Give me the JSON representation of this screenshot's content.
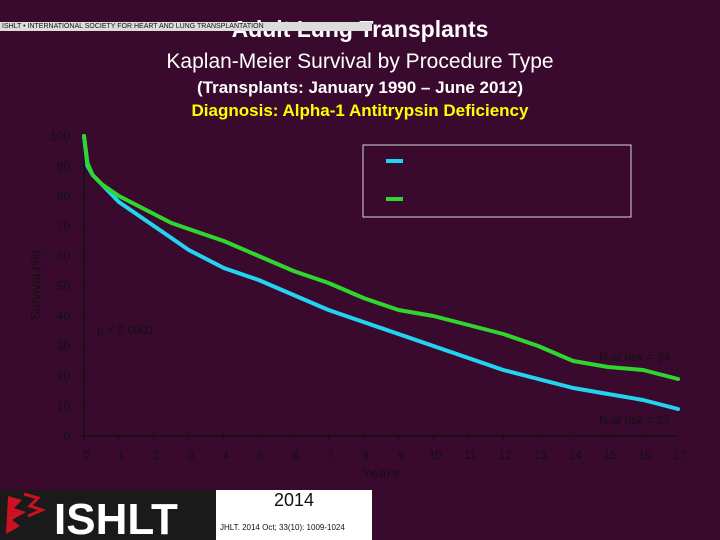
{
  "header": {
    "title": "Adult Lung Transplants",
    "subtitle": "Kaplan-Meier Survival by Procedure Type",
    "period": "(Transplants: January 1990 – June 2012)",
    "diagnosis": "Diagnosis: Alpha-1 Antitrypsin Deficiency"
  },
  "chart_data": {
    "type": "line",
    "title": "Adult Lung Transplants",
    "xlabel": "Years",
    "ylabel": "Survival (%)",
    "xlim": [
      0,
      17
    ],
    "ylim": [
      0,
      100
    ],
    "x_ticks": [
      "0",
      "1",
      "2",
      "3",
      "4",
      "5",
      "6",
      "7",
      "8",
      "9",
      "10",
      "11",
      "12",
      "13",
      "14",
      "15",
      "16",
      "17"
    ],
    "y_ticks": [
      "0",
      "10",
      "20",
      "30",
      "40",
      "50",
      "60",
      "70",
      "80",
      "90",
      "100"
    ],
    "legend_position": "top-right",
    "series": [
      {
        "color": "#22d4f0",
        "x": [
          0,
          0.1,
          0.25,
          0.5,
          1,
          1.5,
          2,
          2.5,
          3,
          3.5,
          4,
          5,
          6,
          7,
          8,
          9,
          10,
          11,
          12,
          13,
          14,
          15,
          16,
          17
        ],
        "y": [
          100,
          90,
          87,
          84,
          78,
          74,
          70,
          66,
          62,
          59,
          56,
          52,
          47,
          42,
          38,
          34,
          30,
          26,
          22,
          19,
          16,
          14,
          12,
          9
        ]
      },
      {
        "color": "#2ed62e",
        "x": [
          0,
          0.1,
          0.25,
          0.5,
          1,
          1.5,
          2,
          2.5,
          3,
          3.5,
          4,
          5,
          6,
          7,
          8,
          9,
          10,
          11,
          12,
          13,
          14,
          15,
          16,
          17
        ],
        "y": [
          100,
          91,
          87,
          84,
          80,
          77,
          74,
          71,
          69,
          67,
          65,
          60,
          55,
          51,
          46,
          42,
          40,
          37,
          34,
          30,
          25,
          23,
          22,
          19
        ]
      }
    ],
    "annotations": {
      "p_value": "p < 0.0001",
      "n_risk_top": "N at risk = 34",
      "n_risk_bottom": "N at risk = 27"
    }
  },
  "footer": {
    "logo_text": "ISHLT",
    "society": "ISHLT • INTERNATIONAL SOCIETY FOR HEART AND LUNG TRANSPLANTATION",
    "year": "2014",
    "citation": "JHLT. 2014 Oct; 33(10): 1009-1024"
  }
}
